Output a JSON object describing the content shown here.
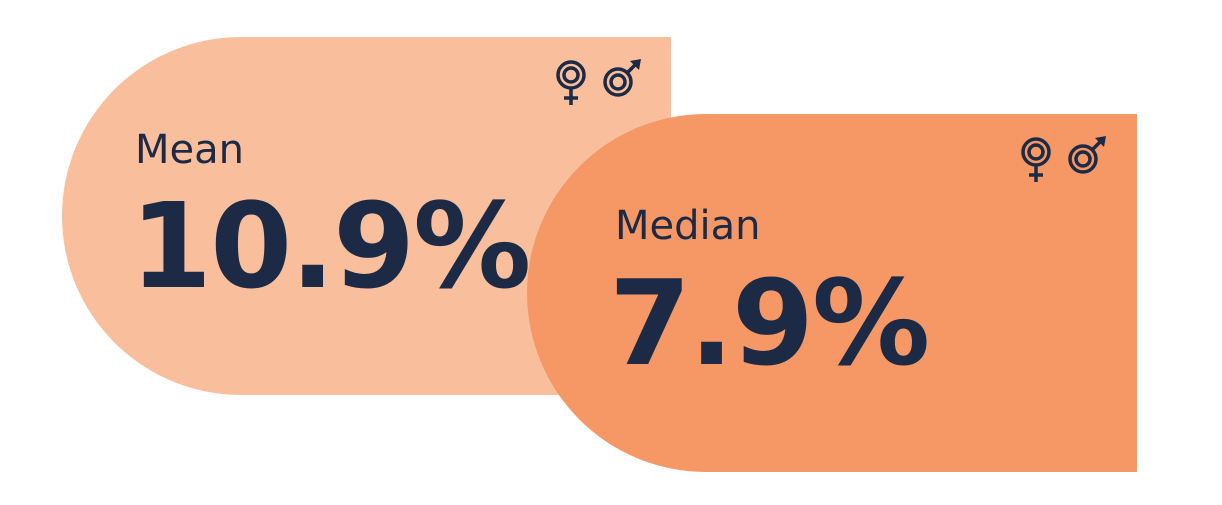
{
  "stats": [
    {
      "label": "Mean",
      "value": "10.9%",
      "color": "#f9bf9c",
      "icons": [
        "female-icon",
        "male-icon"
      ]
    },
    {
      "label": "Median",
      "value": "7.9%",
      "color": "#f69865",
      "icons": [
        "female-icon",
        "male-icon"
      ]
    }
  ],
  "text_color": "#1d2a45"
}
